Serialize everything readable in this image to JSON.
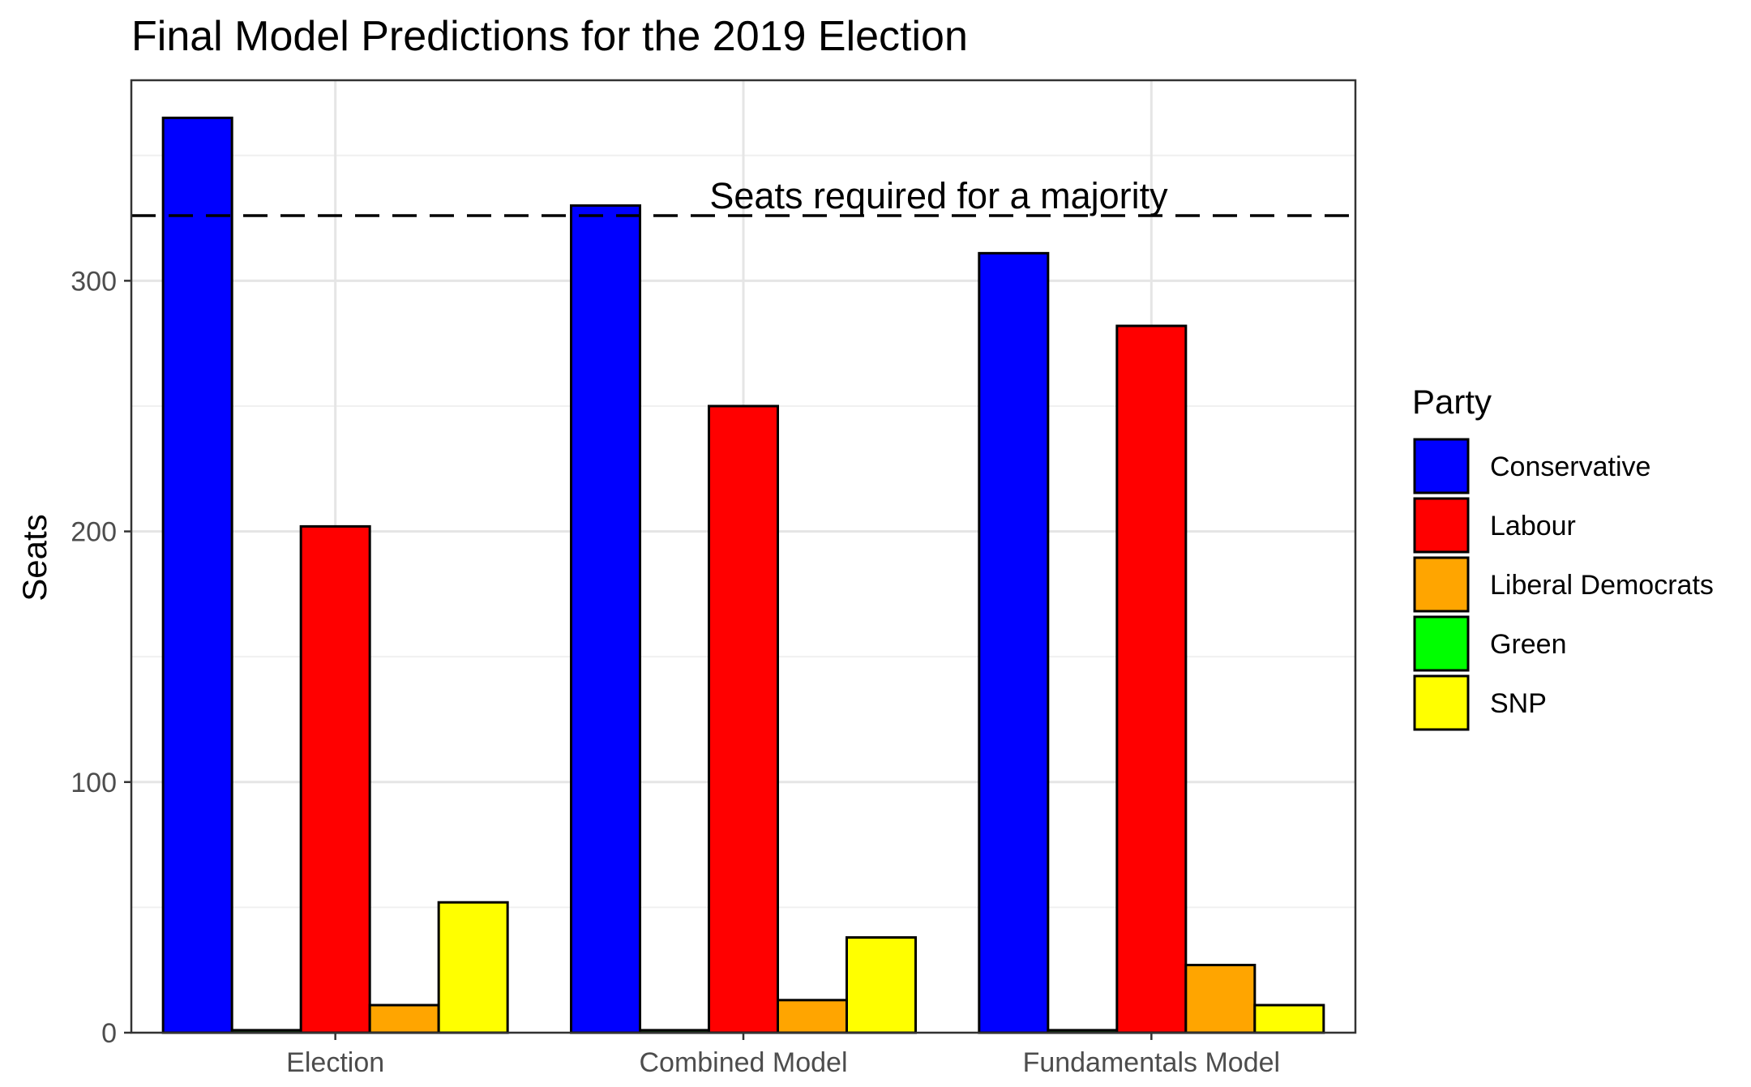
{
  "chart_data": {
    "type": "bar",
    "title": "Final Model Predictions for the 2019 Election",
    "xlabel": "",
    "ylabel": "Seats",
    "categories": [
      "Election",
      "Combined Model",
      "Fundamentals Model"
    ],
    "series": [
      {
        "name": "Conservative",
        "color": "#0000ff",
        "values": [
          365,
          330,
          311
        ]
      },
      {
        "name": "Labour",
        "color": "#ff0000",
        "values": [
          202,
          250,
          282
        ]
      },
      {
        "name": "Liberal Democrats",
        "color": "#ffa500",
        "values": [
          11,
          13,
          27
        ]
      },
      {
        "name": "Green",
        "color": "#00ff00",
        "values": [
          1,
          1,
          1
        ]
      },
      {
        "name": "SNP",
        "color": "#ffff00",
        "values": [
          52,
          38,
          11
        ]
      }
    ],
    "bar_order": [
      "Conservative",
      "Green",
      "Labour",
      "Liberal Democrats",
      "SNP"
    ],
    "yticks": [
      0,
      100,
      200,
      300
    ],
    "ylim": [
      0,
      380
    ],
    "grid": true,
    "legend": {
      "title": "Party",
      "position": "right"
    },
    "reference_line": {
      "y": 326,
      "label": "Seats required for a majority",
      "style": "dashed"
    }
  }
}
